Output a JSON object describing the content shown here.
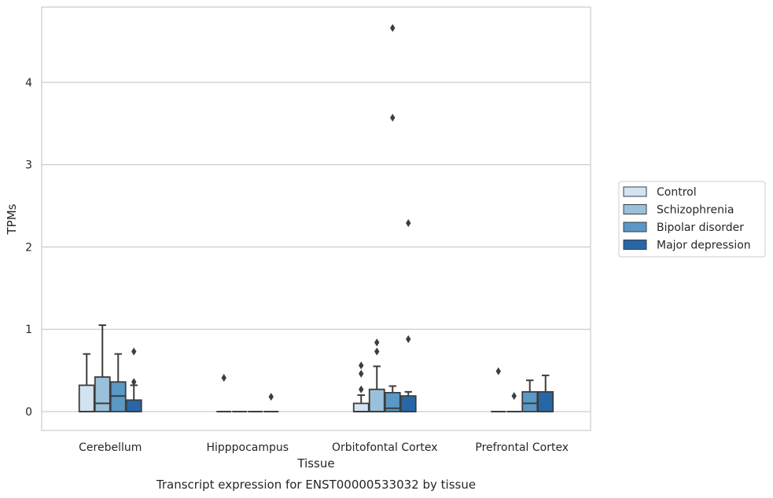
{
  "chart_data": {
    "type": "box",
    "caption": "Transcript expression for ENST00000533032 by tissue",
    "xlabel": "Tissue",
    "ylabel": "TPMs",
    "ylim": [
      -0.23,
      4.9
    ],
    "yticks": [
      0,
      1,
      2,
      3,
      4
    ],
    "grid": true,
    "legend_position": "right",
    "categories": [
      "Cerebellum",
      "Hipppocampus",
      "Orbitofontal Cortex",
      "Prefrontal Cortex"
    ],
    "series": [
      {
        "name": "Control",
        "color": "#d3e3f2",
        "boxes": [
          {
            "whislo": 0,
            "q1": 0,
            "med": 0,
            "q3": 0.32,
            "whishi": 0.7,
            "fliers": []
          },
          {
            "whislo": 0,
            "q1": 0,
            "med": 0,
            "q3": 0,
            "whishi": 0,
            "fliers": [
              0.41
            ]
          },
          {
            "whislo": 0,
            "q1": 0,
            "med": 0,
            "q3": 0.1,
            "whishi": 0.2,
            "fliers": [
              0.27,
              0.46,
              0.56
            ]
          },
          {
            "whislo": 0,
            "q1": 0,
            "med": 0,
            "q3": 0,
            "whishi": 0,
            "fliers": [
              0.49
            ]
          }
        ]
      },
      {
        "name": "Schizophrenia",
        "color": "#9bc1da",
        "boxes": [
          {
            "whislo": 0,
            "q1": 0,
            "med": 0.1,
            "q3": 0.42,
            "whishi": 1.05,
            "fliers": []
          },
          {
            "whislo": 0,
            "q1": 0,
            "med": 0,
            "q3": 0,
            "whishi": 0,
            "fliers": []
          },
          {
            "whislo": 0,
            "q1": 0,
            "med": 0,
            "q3": 0.27,
            "whishi": 0.55,
            "fliers": [
              0.73,
              0.84
            ]
          },
          {
            "whislo": 0,
            "q1": 0,
            "med": 0,
            "q3": 0,
            "whishi": 0,
            "fliers": [
              0.19
            ]
          }
        ]
      },
      {
        "name": "Bipolar disorder",
        "color": "#5a98c6",
        "boxes": [
          {
            "whislo": 0,
            "q1": 0,
            "med": 0.19,
            "q3": 0.36,
            "whishi": 0.7,
            "fliers": []
          },
          {
            "whislo": 0,
            "q1": 0,
            "med": 0,
            "q3": 0,
            "whishi": 0,
            "fliers": []
          },
          {
            "whislo": 0,
            "q1": 0,
            "med": 0.04,
            "q3": 0.23,
            "whishi": 0.31,
            "fliers": [
              3.57,
              4.66
            ]
          },
          {
            "whislo": 0,
            "q1": 0,
            "med": 0.1,
            "q3": 0.24,
            "whishi": 0.38,
            "fliers": []
          }
        ]
      },
      {
        "name": "Major depression",
        "color": "#2767a8",
        "boxes": [
          {
            "whislo": 0,
            "q1": 0,
            "med": 0,
            "q3": 0.14,
            "whishi": 0.32,
            "fliers": [
              0.36,
              0.73
            ]
          },
          {
            "whislo": 0,
            "q1": 0,
            "med": 0,
            "q3": 0,
            "whishi": 0,
            "fliers": [
              0.18
            ]
          },
          {
            "whislo": 0,
            "q1": 0,
            "med": 0,
            "q3": 0.19,
            "whishi": 0.24,
            "fliers": [
              0.88,
              2.29
            ]
          },
          {
            "whislo": 0,
            "q1": 0,
            "med": 0,
            "q3": 0.24,
            "whishi": 0.44,
            "fliers": []
          }
        ]
      }
    ]
  }
}
